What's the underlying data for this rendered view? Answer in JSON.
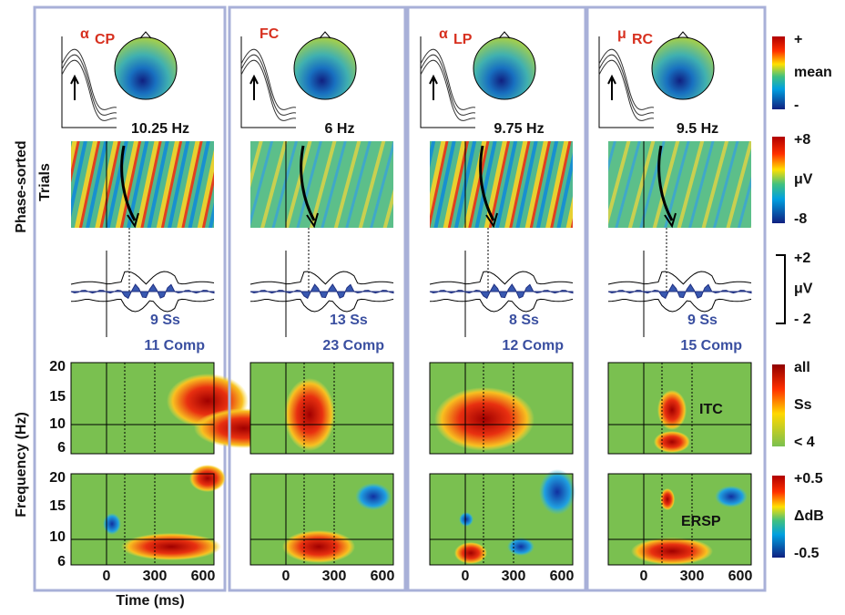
{
  "panels": [
    {
      "title": "α",
      "title_sub": "CP",
      "freq": "10.25 Hz",
      "subjects": "9  Ss",
      "components": "11 Comp"
    },
    {
      "title": "FC",
      "title_sub": "",
      "freq": "6 Hz",
      "subjects": "13  Ss",
      "components": "23 Comp"
    },
    {
      "title": "α",
      "title_sub": "LP",
      "freq": "9.75 Hz",
      "subjects": "8 Ss",
      "components": "12 Comp"
    },
    {
      "title": "μ",
      "title_sub": "RC",
      "freq": "9.5 Hz",
      "subjects": "9  Ss",
      "components": "15 Comp"
    }
  ],
  "side_labels": {
    "phase_sorted": "Phase-sorted",
    "trials": "Trials",
    "frequency": "Frequency (Hz)",
    "time": "Time (ms)"
  },
  "y_ticks": [
    "20",
    "15",
    "10",
    "6"
  ],
  "x_ticks": [
    "0",
    "300",
    "600"
  ],
  "colorbars": [
    {
      "top": "+",
      "middle": "mean",
      "bottom": "-"
    },
    {
      "top": "+8",
      "middle": "μV",
      "bottom": "-8"
    },
    {
      "top": "+2",
      "middle": "μV",
      "bottom": "- 2"
    },
    {
      "top": "all",
      "middle": "Ss",
      "bottom": "< 4"
    },
    {
      "top": "+0.5",
      "middle": "ΔdB",
      "bottom": "-0.5"
    }
  ],
  "row_labels": {
    "itc": "ITC",
    "ersp": "ERSP"
  }
}
